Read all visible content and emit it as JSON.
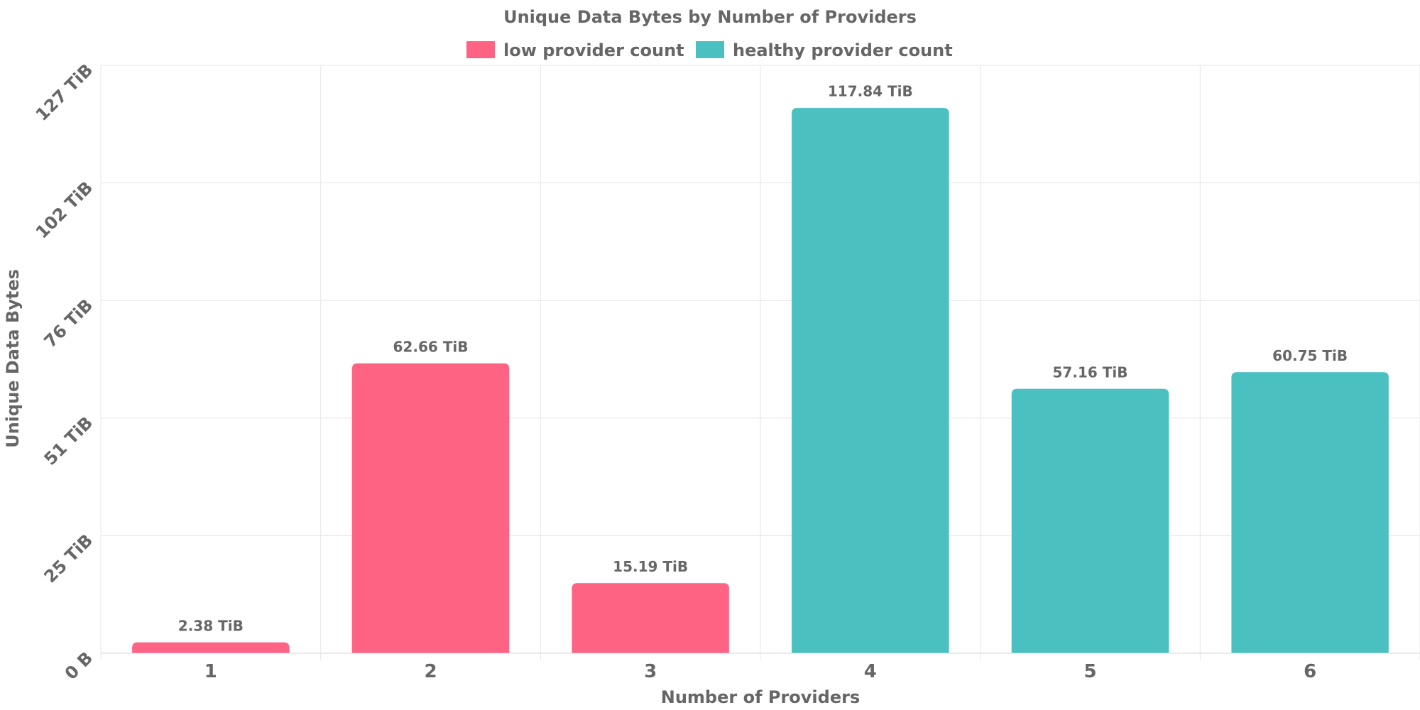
{
  "chart_data": {
    "type": "bar",
    "title": "Unique Data Bytes by Number of Providers",
    "xlabel": "Number of Providers",
    "ylabel": "Unique Data Bytes",
    "categories": [
      "1",
      "2",
      "3",
      "4",
      "5",
      "6"
    ],
    "values": [
      2.38,
      62.66,
      15.19,
      117.84,
      57.16,
      60.75
    ],
    "value_labels": [
      "2.38 TiB",
      "62.66 TiB",
      "15.19 TiB",
      "117.84 TiB",
      "57.16 TiB",
      "60.75 TiB"
    ],
    "bar_series": [
      "low",
      "low",
      "low",
      "healthy",
      "healthy",
      "healthy"
    ],
    "value_unit": "TiB",
    "ylim": [
      0,
      127
    ],
    "y_ticks": [
      {
        "value": 0,
        "label": "0 B"
      },
      {
        "value": 25.4,
        "label": "25 TiB"
      },
      {
        "value": 50.8,
        "label": "51 TiB"
      },
      {
        "value": 76.2,
        "label": "76 TiB"
      },
      {
        "value": 101.6,
        "label": "102 TiB"
      },
      {
        "value": 127,
        "label": "127 TiB"
      }
    ],
    "grid": true,
    "legend_position": "top-center",
    "series": [
      {
        "key": "low",
        "name": "low provider count",
        "color": "#ff6384"
      },
      {
        "key": "healthy",
        "name": "healthy provider count",
        "color": "#4bc0c0"
      }
    ]
  }
}
